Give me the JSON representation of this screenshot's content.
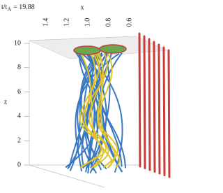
{
  "time_label": {
    "base": "t/t",
    "sub": "A",
    "value": "= 19.88"
  },
  "x_axis": {
    "label": "x",
    "ticks": [
      "1.4",
      "1.2",
      "1.0",
      "0.8",
      "0.6"
    ]
  },
  "z_axis": {
    "label": "z",
    "ticks": [
      "10",
      "8",
      "6",
      "4",
      "2",
      "0"
    ]
  }
}
